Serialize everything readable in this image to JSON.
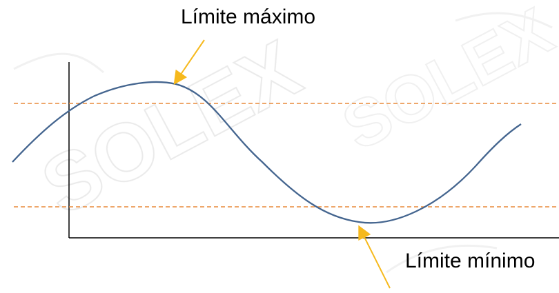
{
  "labels": {
    "max_limit": "Límite máximo",
    "min_limit": "Límite mínimo"
  },
  "watermark": {
    "text": "SOLEX"
  },
  "colors": {
    "curve": "#44658f",
    "limit_lines": "#e98a3a",
    "arrows": "#f6b91d",
    "axes": "#000000",
    "watermark": "#d9d9d9"
  }
}
